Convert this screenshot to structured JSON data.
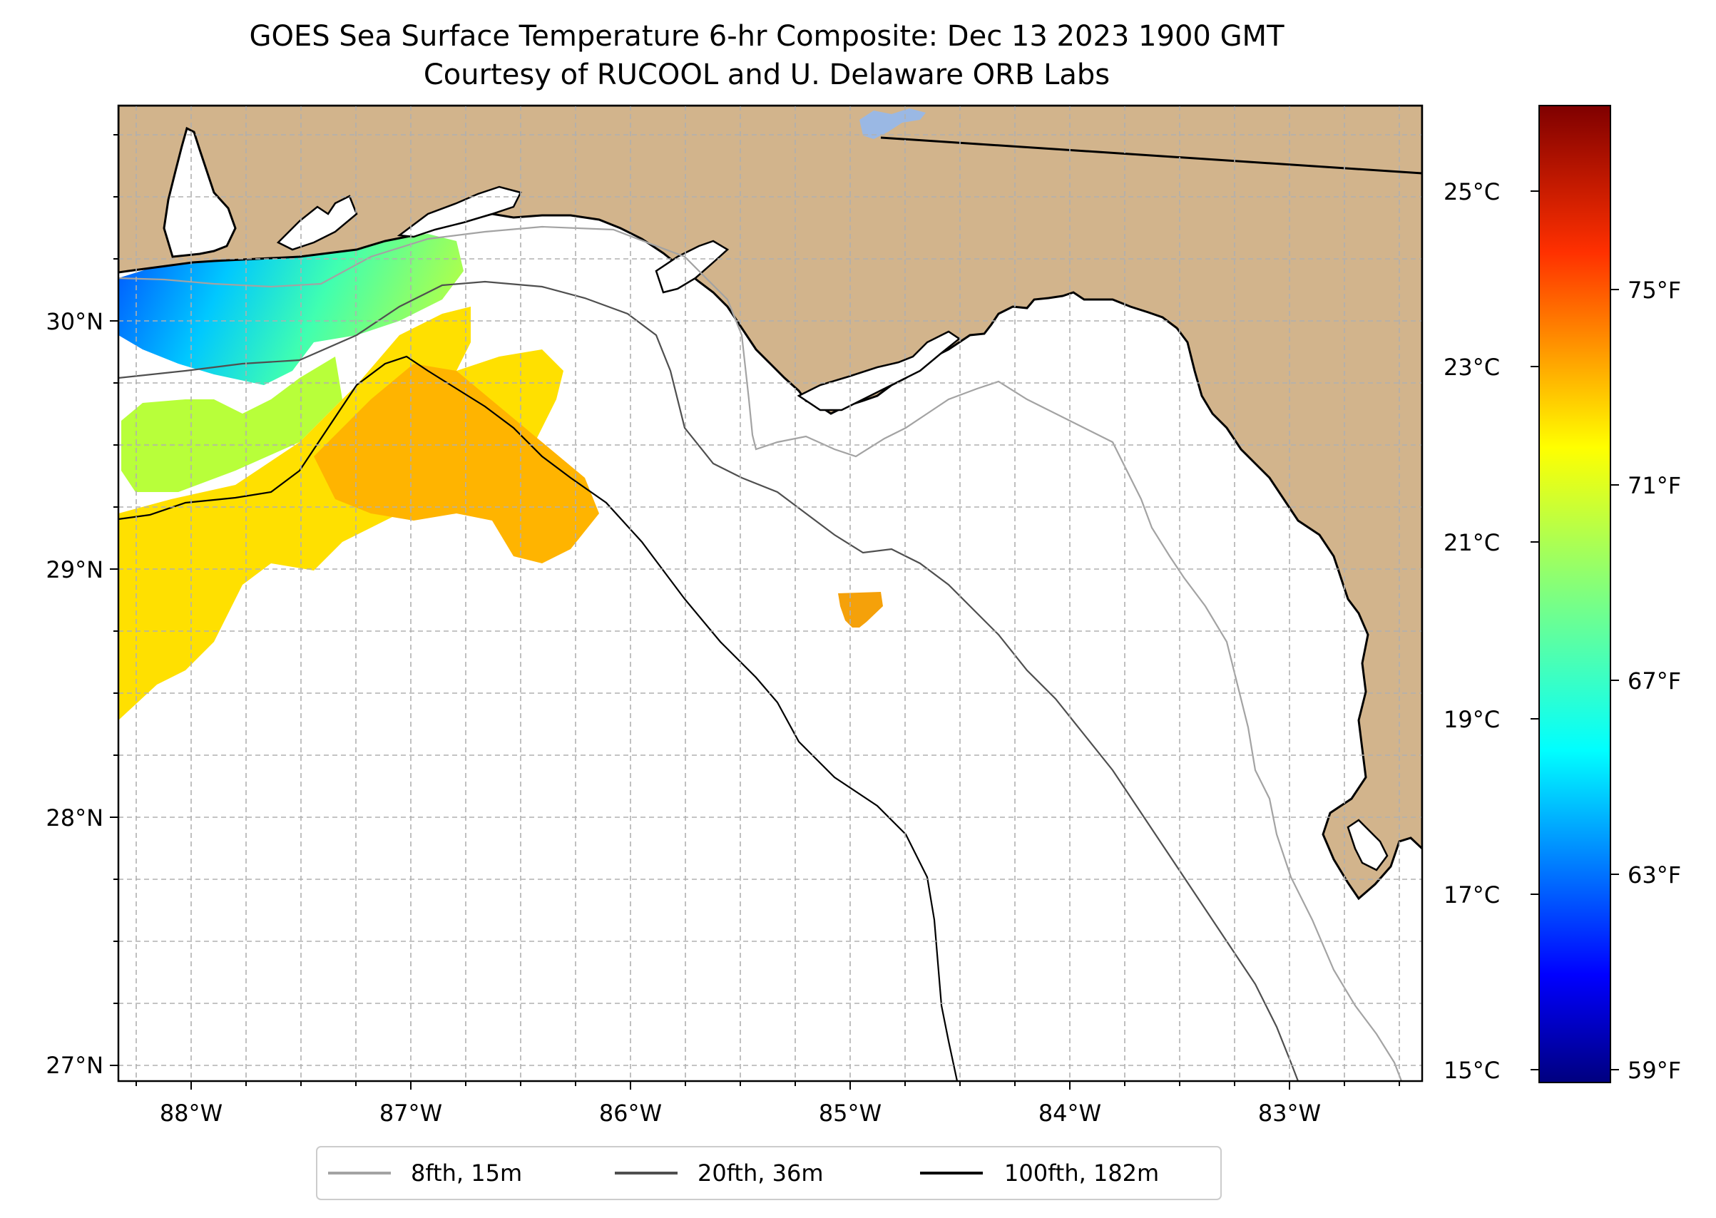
{
  "title": {
    "line1": "GOES Sea Surface Temperature 6-hr Composite: Dec 13 2023 1900 GMT",
    "line2": "Courtesy of RUCOOL and U. Delaware ORB Labs"
  },
  "map": {
    "lat_labels": [
      "30°N",
      "29°N",
      "28°N",
      "27°N"
    ],
    "lon_labels": [
      "88°W",
      "87°W",
      "86°W",
      "85°W",
      "84°W",
      "83°W"
    ],
    "colors": {
      "land": "#d2b48c",
      "ocean": "#ffffff",
      "coast": "#000000",
      "lake": "#9ab8e4",
      "grid": "#b0b0b0"
    }
  },
  "legend": {
    "items": [
      {
        "label": "8fth, 15m",
        "color": "#a3a3a3"
      },
      {
        "label": "20fth, 36m",
        "color": "#4f4f4f"
      },
      {
        "label": "100fth, 182m",
        "color": "#000000"
      }
    ]
  },
  "colorbar": {
    "celsius_labels": [
      "25°C",
      "23°C",
      "21°C",
      "19°C",
      "17°C",
      "15°C"
    ],
    "fahrenheit_labels": [
      "75°F",
      "71°F",
      "67°F",
      "63°F",
      "59°F"
    ],
    "colors": [
      "#00007f",
      "#0000ff",
      "#007fff",
      "#00ffff",
      "#7fff7f",
      "#ffff00",
      "#ff7f00",
      "#ff0000",
      "#7f0000"
    ]
  }
}
